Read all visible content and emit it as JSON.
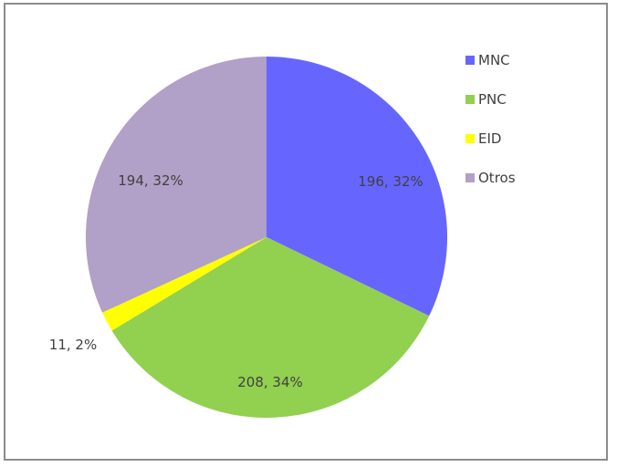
{
  "chart_data": {
    "type": "pie",
    "title": "",
    "legend_position": "right",
    "series": [
      {
        "labels": [
          "MNC",
          "PNC",
          "EID",
          "Otros"
        ],
        "values": [
          196,
          208,
          11,
          194
        ],
        "percent_labels": [
          "196, 32%",
          "208, 34%",
          "11, 2%",
          "194, 32%"
        ],
        "colors": [
          "#6666FF",
          "#92D050",
          "#FFFF00",
          "#B1A0C7"
        ]
      }
    ]
  }
}
